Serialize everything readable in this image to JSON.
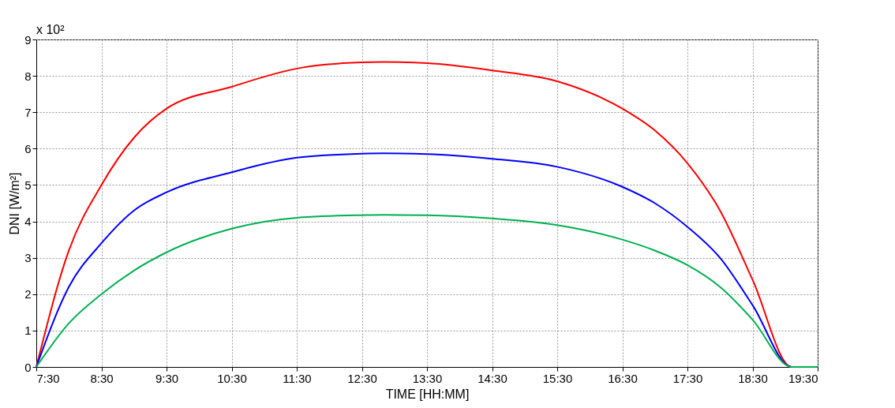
{
  "chart_data": {
    "type": "line",
    "xlabel": "TIME [HH:MM]",
    "ylabel": "DNI [W/m²]",
    "annotations": [
      "x 10²"
    ],
    "x": [
      7.5,
      8.0,
      8.5,
      9.0,
      9.5,
      10.5,
      11.5,
      12.5,
      12.83,
      13.5,
      14.5,
      15.5,
      16.5,
      17.0,
      17.5,
      18.0,
      18.5,
      19.1,
      19.5
    ],
    "series": [
      {
        "color": "#ff0000",
        "values": [
          0,
          3.2,
          5.0,
          6.3,
          7.1,
          7.7,
          8.2,
          8.37,
          8.38,
          8.35,
          8.15,
          7.85,
          7.1,
          6.5,
          5.6,
          4.3,
          2.4,
          0,
          0
        ]
      },
      {
        "color": "#0000ff",
        "values": [
          0,
          2.2,
          3.4,
          4.3,
          4.8,
          5.35,
          5.75,
          5.86,
          5.87,
          5.85,
          5.72,
          5.5,
          4.95,
          4.5,
          3.85,
          3.0,
          1.7,
          0,
          0
        ]
      },
      {
        "color": "#00b050",
        "values": [
          0,
          1.2,
          2.0,
          2.65,
          3.15,
          3.8,
          4.1,
          4.17,
          4.18,
          4.17,
          4.08,
          3.9,
          3.5,
          3.2,
          2.8,
          2.2,
          1.3,
          0,
          0
        ]
      }
    ],
    "xlim": [
      7.5,
      19.5
    ],
    "xticks": [
      {
        "value": 7.5,
        "label": "7:30"
      },
      {
        "value": 8.5,
        "label": "8:30"
      },
      {
        "value": 9.5,
        "label": "9:30"
      },
      {
        "value": 10.5,
        "label": "10:30"
      },
      {
        "value": 11.5,
        "label": "11:30"
      },
      {
        "value": 12.5,
        "label": "12:30"
      },
      {
        "value": 13.5,
        "label": "13:30"
      },
      {
        "value": 14.5,
        "label": "14:30"
      },
      {
        "value": 15.5,
        "label": "15:30"
      },
      {
        "value": 16.5,
        "label": "16:30"
      },
      {
        "value": 17.5,
        "label": "17:30"
      },
      {
        "value": 18.5,
        "label": "18:30"
      },
      {
        "value": 19.5,
        "label": "19:30"
      }
    ],
    "ylim": [
      0,
      9
    ],
    "yticks": [
      0,
      1,
      2,
      3,
      4,
      5,
      6,
      7,
      8,
      9
    ],
    "grid": true,
    "line_style": "solid",
    "marker": "none"
  }
}
